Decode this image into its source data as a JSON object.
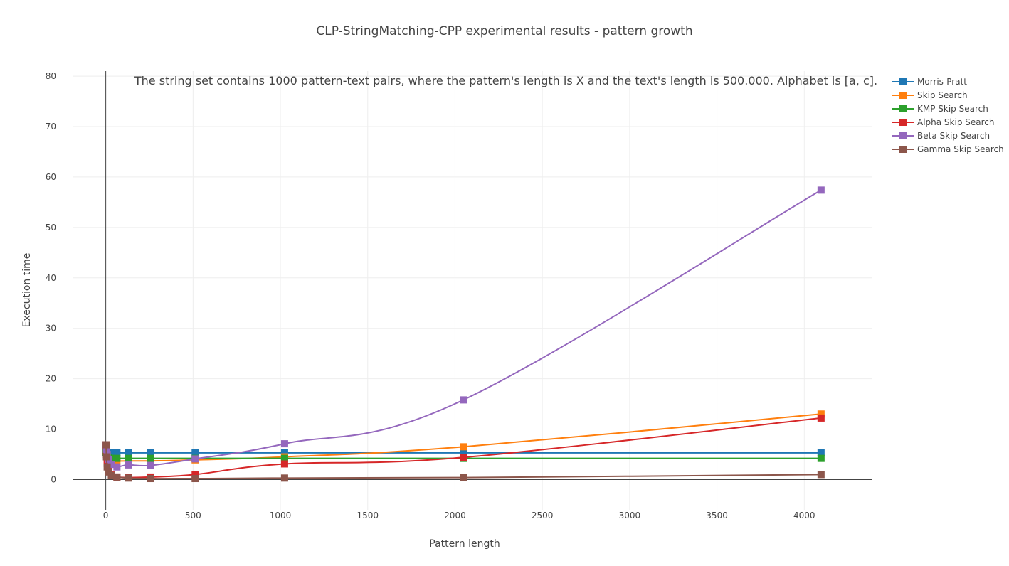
{
  "chart_data": {
    "type": "line",
    "title": "CLP-StringMatching-CPP experimental results - pattern growth",
    "xlabel": "Pattern length",
    "ylabel": "Execution time",
    "annotation": "The string set contains 1000 pattern-text pairs, where the pattern's length is X and the text's length is 500.000. Alphabet is [a, c].",
    "xlim": [
      -190,
      4390
    ],
    "ylim": [
      -6,
      81
    ],
    "xticks": [
      0,
      500,
      1000,
      1500,
      2000,
      2500,
      3000,
      3500,
      4000
    ],
    "yticks": [
      0,
      10,
      20,
      30,
      40,
      50,
      60,
      70,
      80
    ],
    "grid": true,
    "legend_position": "top-right",
    "x": [
      2,
      4,
      8,
      16,
      32,
      64,
      128,
      256,
      512,
      1024,
      2048,
      4096
    ],
    "series": [
      {
        "name": "Morris-Pratt",
        "color": "#1f77b4",
        "values": [
          5.3,
          5.3,
          5.3,
          5.3,
          5.3,
          5.3,
          5.3,
          5.3,
          5.3,
          5.3,
          5.3,
          5.3
        ]
      },
      {
        "name": "Skip Search",
        "color": "#ff7f0e",
        "values": [
          5.6,
          5.2,
          4.9,
          4.4,
          4.0,
          3.7,
          3.7,
          3.7,
          3.9,
          4.5,
          6.5,
          13.0
        ]
      },
      {
        "name": "KMP Skip Search",
        "color": "#2ca02c",
        "values": [
          5.4,
          5.0,
          4.7,
          4.4,
          4.2,
          4.2,
          4.2,
          4.2,
          4.2,
          4.2,
          4.2,
          4.2
        ]
      },
      {
        "name": "Alpha Skip Search",
        "color": "#d62728",
        "values": [
          6.8,
          5.0,
          3.2,
          1.8,
          0.9,
          0.5,
          0.4,
          0.5,
          1.0,
          3.1,
          4.4,
          12.2
        ]
      },
      {
        "name": "Beta Skip Search",
        "color": "#9467bd",
        "values": [
          6.9,
          6.0,
          5.0,
          4.0,
          3.0,
          2.5,
          2.9,
          2.8,
          4.1,
          7.1,
          15.8,
          57.4
        ]
      },
      {
        "name": "Gamma Skip Search",
        "color": "#8c564b",
        "values": [
          6.9,
          4.5,
          2.5,
          1.5,
          0.8,
          0.5,
          0.3,
          0.2,
          0.2,
          0.3,
          0.4,
          1.0
        ]
      }
    ]
  }
}
